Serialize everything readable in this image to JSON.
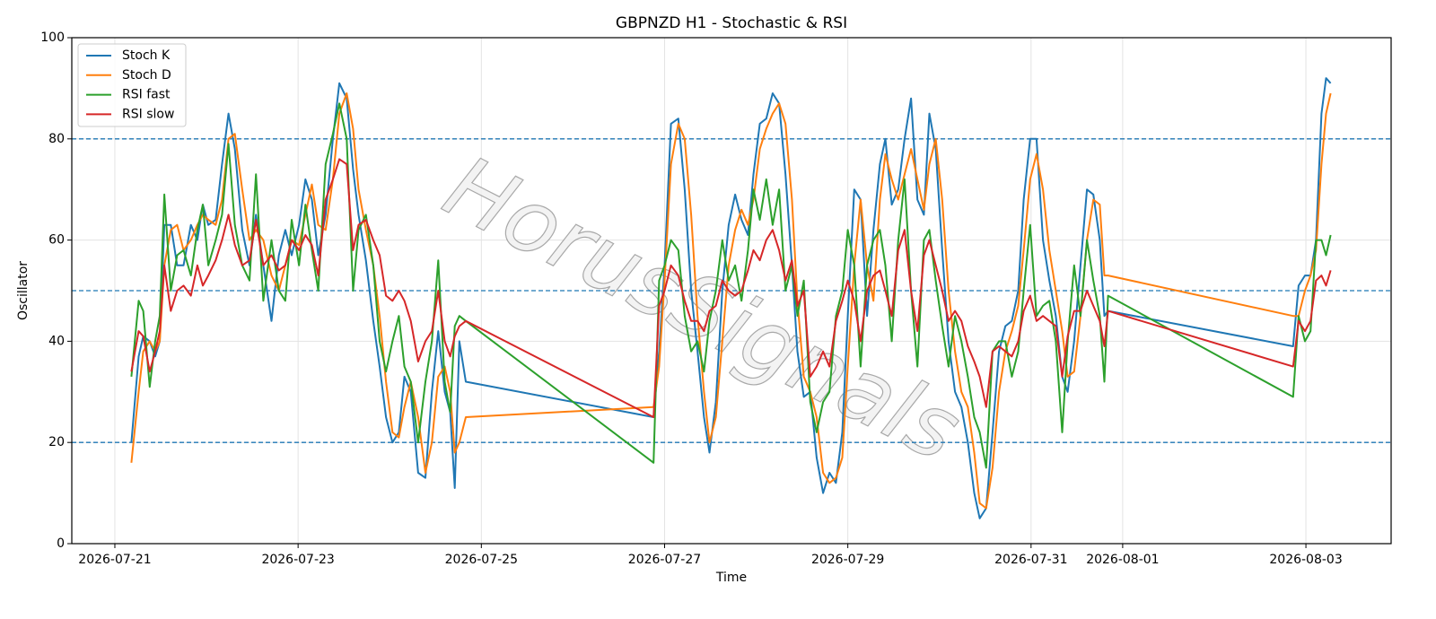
{
  "chart_data": {
    "type": "line",
    "title": "GBPNZD H1 - Stochastic & RSI",
    "xlabel": "Time",
    "ylabel": "Oscillator",
    "watermark": "HorusSignals",
    "xlim": [
      -0.47,
      13.93
    ],
    "ylim": [
      0,
      100
    ],
    "xticks": [
      {
        "value": 0,
        "label": "2026-07-21"
      },
      {
        "value": 2,
        "label": "2026-07-23"
      },
      {
        "value": 4,
        "label": "2026-07-25"
      },
      {
        "value": 6,
        "label": "2026-07-27"
      },
      {
        "value": 8,
        "label": "2026-07-29"
      },
      {
        "value": 10,
        "label": "2026-07-31"
      },
      {
        "value": 11,
        "label": "2026-08-01"
      },
      {
        "value": 13,
        "label": "2026-08-03"
      }
    ],
    "yticks": [
      0,
      20,
      40,
      60,
      80,
      100
    ],
    "grid": true,
    "legend": "upper-left",
    "hlines": [
      20,
      50,
      80
    ],
    "hline_color": "#1f77b4",
    "x": [
      0.18,
      0.26,
      0.31,
      0.38,
      0.44,
      0.49,
      0.54,
      0.61,
      0.68,
      0.75,
      0.83,
      0.9,
      0.96,
      1.02,
      1.1,
      1.17,
      1.24,
      1.31,
      1.39,
      1.47,
      1.54,
      1.62,
      1.71,
      1.79,
      1.86,
      1.93,
      2.01,
      2.08,
      2.15,
      2.22,
      2.3,
      2.38,
      2.45,
      2.53,
      2.6,
      2.66,
      2.74,
      2.82,
      2.89,
      2.96,
      3.03,
      3.1,
      3.16,
      3.23,
      3.31,
      3.39,
      3.46,
      3.53,
      3.6,
      3.66,
      3.71,
      3.76,
      3.83,
      5.88,
      5.94,
      6.0,
      6.07,
      6.15,
      6.22,
      6.29,
      6.36,
      6.43,
      6.49,
      6.56,
      6.63,
      6.7,
      6.77,
      6.84,
      6.91,
      6.97,
      7.04,
      7.11,
      7.18,
      7.25,
      7.32,
      7.39,
      7.45,
      7.52,
      7.59,
      7.66,
      7.73,
      7.8,
      7.87,
      7.94,
      8.0,
      8.07,
      8.14,
      8.21,
      8.28,
      8.35,
      8.41,
      8.48,
      8.55,
      8.62,
      8.69,
      8.76,
      8.83,
      8.89,
      8.96,
      9.03,
      9.1,
      9.17,
      9.24,
      9.31,
      9.38,
      9.44,
      9.51,
      9.58,
      9.65,
      9.72,
      9.79,
      9.86,
      9.92,
      9.99,
      10.06,
      10.13,
      10.2,
      10.27,
      10.34,
      10.4,
      10.47,
      10.54,
      10.61,
      10.68,
      10.75,
      10.8,
      10.84,
      12.86,
      12.92,
      12.99,
      13.05,
      13.11,
      13.17,
      13.22,
      13.27
    ],
    "series": [
      {
        "name": "Stoch K",
        "color": "#1f77b4",
        "values": [
          20,
          37,
          41,
          40,
          37,
          40,
          63,
          63,
          55,
          55,
          63,
          60,
          67,
          63,
          64,
          75,
          85,
          78,
          62,
          55,
          65,
          55,
          44,
          57,
          62,
          57,
          63,
          72,
          68,
          57,
          65,
          80,
          91,
          88,
          74,
          65,
          56,
          44,
          35,
          25,
          20,
          22,
          33,
          30,
          14,
          13,
          30,
          42,
          30,
          26,
          11,
          40,
          32,
          25,
          38,
          55,
          83,
          84,
          70,
          50,
          38,
          25,
          18,
          28,
          50,
          63,
          69,
          64,
          61,
          73,
          83,
          84,
          89,
          87,
          73,
          55,
          38,
          29,
          30,
          17,
          10,
          14,
          12,
          22,
          45,
          70,
          68,
          45,
          62,
          75,
          80,
          67,
          70,
          80,
          88,
          68,
          65,
          85,
          78,
          58,
          40,
          30,
          27,
          20,
          10,
          5,
          7,
          22,
          38,
          43,
          44,
          50,
          68,
          80,
          80,
          60,
          52,
          45,
          33,
          30,
          40,
          55,
          70,
          69,
          60,
          45,
          46,
          39,
          51,
          53,
          53,
          60,
          85,
          92,
          91
        ]
      },
      {
        "name": "Stoch D",
        "color": "#ff7f0e",
        "values": [
          16,
          30,
          38,
          40,
          38,
          40,
          55,
          62,
          63,
          58,
          60,
          63,
          65,
          64,
          63,
          68,
          80,
          81,
          70,
          60,
          62,
          60,
          53,
          50,
          55,
          60,
          59,
          65,
          71,
          63,
          62,
          72,
          85,
          89,
          82,
          70,
          62,
          55,
          45,
          32,
          22,
          21,
          27,
          32,
          25,
          14,
          20,
          33,
          35,
          30,
          18,
          20,
          25,
          27,
          35,
          52,
          75,
          83,
          80,
          65,
          45,
          30,
          20,
          25,
          40,
          55,
          62,
          66,
          63,
          68,
          78,
          82,
          85,
          87,
          83,
          68,
          48,
          33,
          30,
          25,
          14,
          12,
          13,
          17,
          35,
          55,
          68,
          55,
          48,
          68,
          77,
          72,
          68,
          73,
          78,
          72,
          66,
          75,
          80,
          68,
          50,
          38,
          30,
          27,
          18,
          8,
          7,
          15,
          30,
          38,
          42,
          47,
          58,
          72,
          77,
          70,
          58,
          50,
          42,
          33,
          34,
          45,
          60,
          68,
          67,
          53,
          53,
          45,
          45,
          50,
          53,
          58,
          75,
          85,
          89
        ]
      },
      {
        "name": "RSI fast",
        "color": "#2ca02c",
        "values": [
          33,
          48,
          46,
          31,
          40,
          45,
          69,
          50,
          57,
          58,
          53,
          62,
          67,
          55,
          60,
          65,
          79,
          63,
          55,
          52,
          73,
          48,
          60,
          50,
          48,
          64,
          55,
          67,
          58,
          50,
          75,
          81,
          87,
          80,
          50,
          62,
          65,
          55,
          40,
          34,
          40,
          45,
          35,
          32,
          20,
          32,
          40,
          56,
          32,
          26,
          43,
          45,
          44,
          16,
          52,
          55,
          60,
          58,
          45,
          38,
          40,
          34,
          44,
          50,
          60,
          52,
          55,
          48,
          58,
          70,
          64,
          72,
          63,
          70,
          50,
          55,
          45,
          52,
          28,
          22,
          28,
          30,
          45,
          50,
          62,
          55,
          35,
          55,
          60,
          62,
          55,
          40,
          60,
          72,
          50,
          35,
          60,
          62,
          52,
          43,
          35,
          45,
          40,
          33,
          25,
          22,
          15,
          38,
          40,
          40,
          33,
          38,
          50,
          63,
          45,
          47,
          48,
          40,
          22,
          40,
          55,
          45,
          60,
          52,
          45,
          32,
          49,
          29,
          45,
          40,
          42,
          60,
          60,
          57,
          61
        ]
      },
      {
        "name": "RSI slow",
        "color": "#d62728",
        "values": [
          34,
          42,
          41,
          34,
          38,
          42,
          55,
          46,
          50,
          51,
          49,
          55,
          51,
          53,
          56,
          60,
          65,
          59,
          55,
          56,
          64,
          55,
          57,
          54,
          55,
          60,
          58,
          61,
          59,
          53,
          68,
          72,
          76,
          75,
          58,
          63,
          64,
          60,
          57,
          49,
          48,
          50,
          48,
          44,
          36,
          40,
          42,
          50,
          40,
          37,
          41,
          43,
          44,
          25,
          47,
          50,
          55,
          53,
          48,
          44,
          44,
          42,
          46,
          47,
          52,
          50,
          49,
          50,
          54,
          58,
          56,
          60,
          62,
          58,
          52,
          56,
          47,
          50,
          33,
          35,
          38,
          35,
          44,
          48,
          52,
          48,
          40,
          50,
          53,
          54,
          50,
          45,
          58,
          62,
          50,
          42,
          57,
          60,
          55,
          50,
          44,
          46,
          44,
          39,
          36,
          33,
          27,
          38,
          39,
          38,
          37,
          40,
          46,
          49,
          44,
          45,
          44,
          43,
          33,
          41,
          46,
          46,
          50,
          47,
          44,
          39,
          46,
          35,
          44,
          42,
          44,
          52,
          53,
          51,
          54
        ]
      }
    ]
  }
}
